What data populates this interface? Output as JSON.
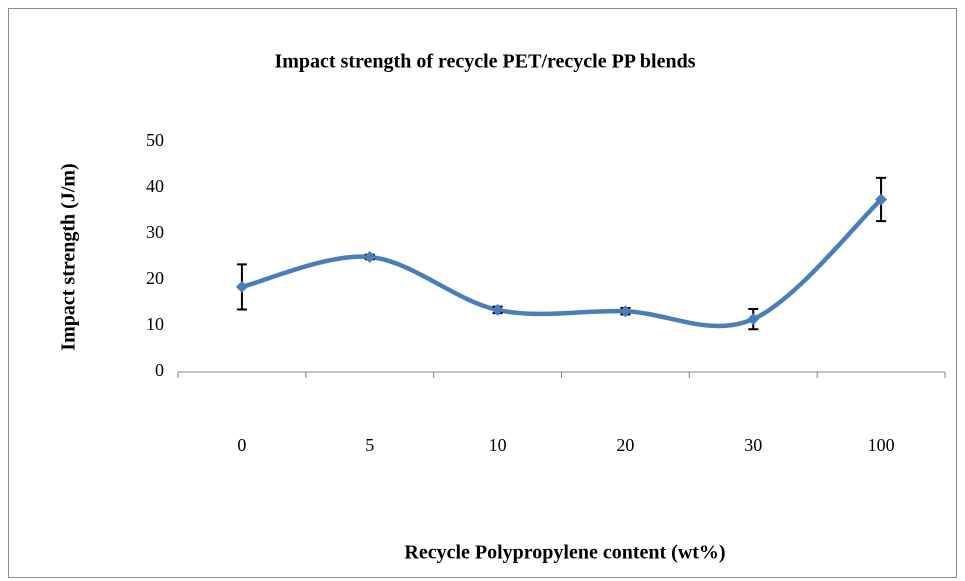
{
  "chart_data": {
    "type": "line",
    "title": "Impact strength of recycle PET/recycle PP blends",
    "x_label": "Recycle Polypropylene content (wt%)",
    "y_label": "Impact  strength (J/m)",
    "categories": [
      "0",
      "5",
      "10",
      "20",
      "30",
      "100"
    ],
    "series": [
      {
        "name": "Impact strength",
        "color": "#4a7ebb",
        "values": [
          18.5,
          25,
          13.5,
          13.2,
          11.5,
          37.5
        ],
        "errors": [
          4.9,
          0.5,
          0.7,
          0.7,
          2.2,
          4.7
        ]
      }
    ],
    "smooth": true,
    "ylim": [
      0,
      50
    ],
    "yticks": [
      0,
      10,
      20,
      30,
      40,
      50
    ]
  }
}
